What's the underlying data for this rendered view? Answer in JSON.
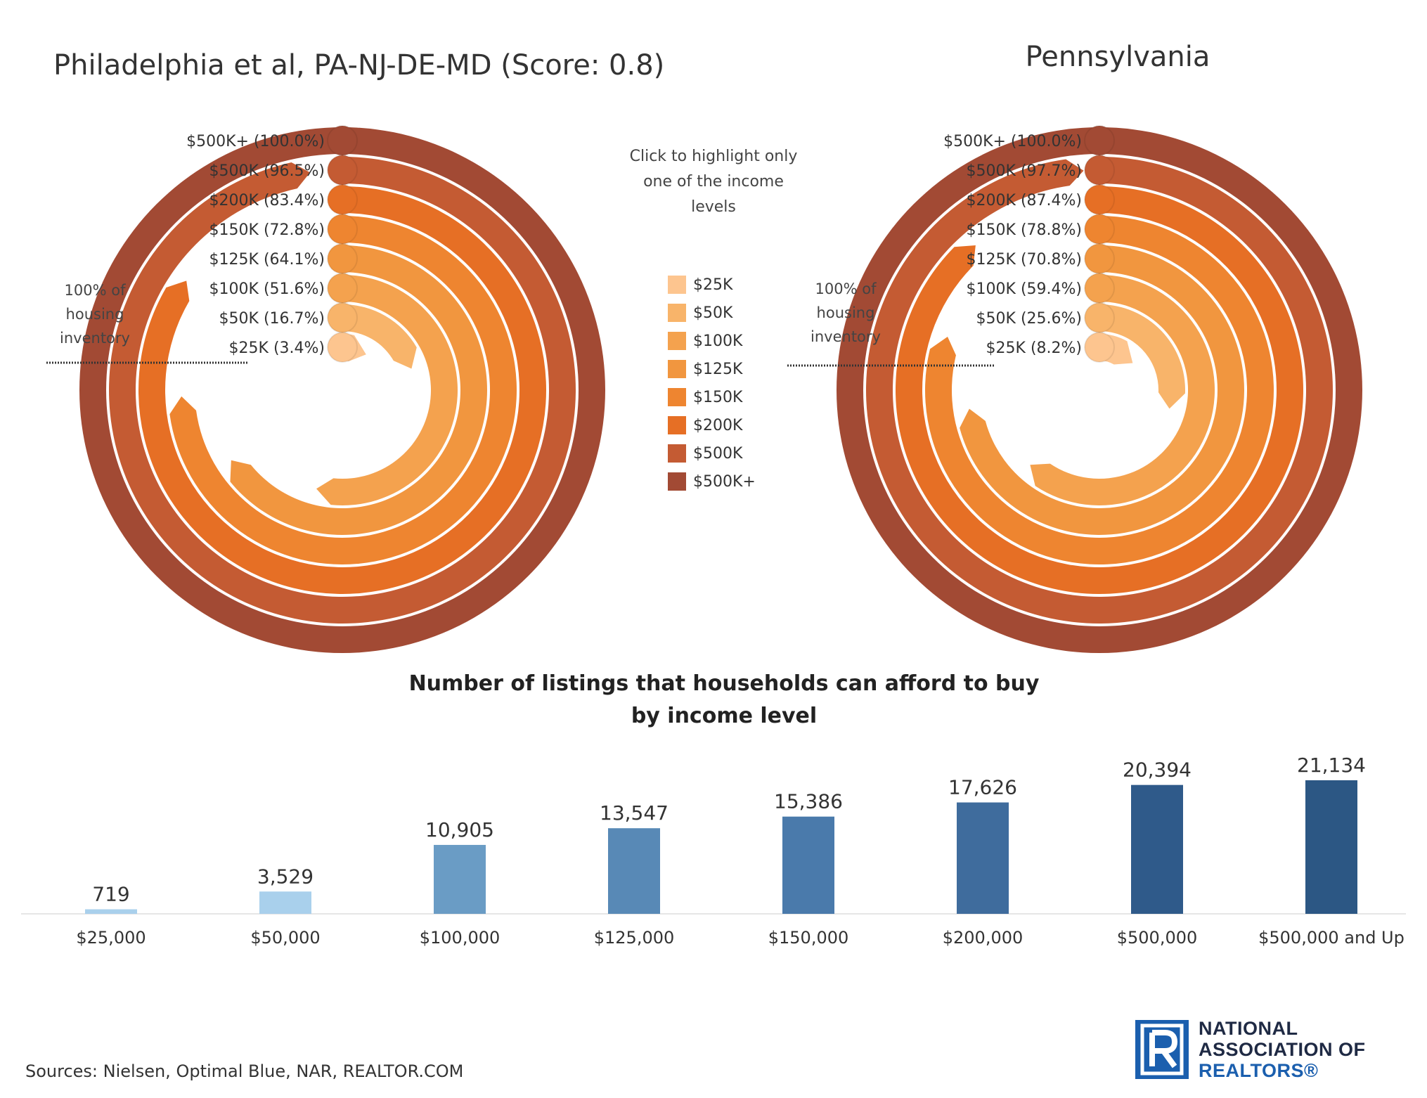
{
  "titles": {
    "left": "Philadelphia et al, PA-NJ-DE-MD (Score: 0.8)",
    "right": "Pennsylvania"
  },
  "hint": "Click to highlight only one of the income levels",
  "inventory_label": [
    "100% of",
    "housing",
    "inventory"
  ],
  "colors": [
    "#fdc58f",
    "#f8b46a",
    "#f4a24e",
    "#f1963f",
    "#ee8530",
    "#e66f25",
    "#c45b33",
    "#a24a34"
  ],
  "legend": [
    "$25K",
    "$50K",
    "$100K",
    "$125K",
    "$150K",
    "$200K",
    "$500K",
    "$500K+"
  ],
  "chart_data": [
    {
      "type": "radial-bar",
      "title": "Philadelphia et al, PA-NJ-DE-MD (Score: 0.8)",
      "categories": [
        "$25K",
        "$50K",
        "$100K",
        "$125K",
        "$150K",
        "$200K",
        "$500K",
        "$500K+"
      ],
      "values": [
        3.4,
        16.7,
        51.6,
        64.1,
        72.8,
        83.4,
        96.5,
        100.0
      ],
      "labels": [
        "$25K (3.4%)",
        "$50K (16.7%)",
        "$100K (51.6%)",
        "$125K (64.1%)",
        "$150K (72.8%)",
        "$200K (83.4%)",
        "$500K (96.5%)",
        "$500K+ (100.0%)"
      ],
      "unit": "% of housing inventory"
    },
    {
      "type": "radial-bar",
      "title": "Pennsylvania",
      "categories": [
        "$25K",
        "$50K",
        "$100K",
        "$125K",
        "$150K",
        "$200K",
        "$500K",
        "$500K+"
      ],
      "values": [
        8.2,
        25.6,
        59.4,
        70.8,
        78.8,
        87.4,
        97.7,
        100.0
      ],
      "labels": [
        "$25K (8.2%)",
        "$50K (25.6%)",
        "$100K (59.4%)",
        "$125K (70.8%)",
        "$150K (78.8%)",
        "$200K (87.4%)",
        "$500K (97.7%)",
        "$500K+ (100.0%)"
      ],
      "unit": "% of housing inventory"
    },
    {
      "type": "bar",
      "title": "Number of listings that households can afford to buy by income level",
      "categories": [
        "$25,000",
        "$50,000",
        "$100,000",
        "$125,000",
        "$150,000",
        "$200,000",
        "$500,000",
        "$500,000 and Up"
      ],
      "values": [
        719,
        3529,
        10905,
        13547,
        15386,
        17626,
        20394,
        21134
      ],
      "value_labels": [
        "719",
        "3,529",
        "10,905",
        "13,547",
        "15,386",
        "17,626",
        "20,394",
        "21,134"
      ],
      "colors": [
        "#a9d0ec",
        "#a9d0ec",
        "#6a9cc5",
        "#5889b6",
        "#4a7aab",
        "#3f6c9d",
        "#2f5a8a",
        "#2c5784"
      ],
      "ylim": [
        0,
        21134
      ]
    }
  ],
  "bar_title": [
    "Number of listings that households can afford to buy",
    "by income level"
  ],
  "sources": "Sources: Nielsen, Optimal Blue, NAR, REALTOR.COM",
  "logo": {
    "line1": "NATIONAL",
    "line2": "ASSOCIATION OF",
    "line3": "REALTORS®",
    "color": "#1b5fae"
  }
}
